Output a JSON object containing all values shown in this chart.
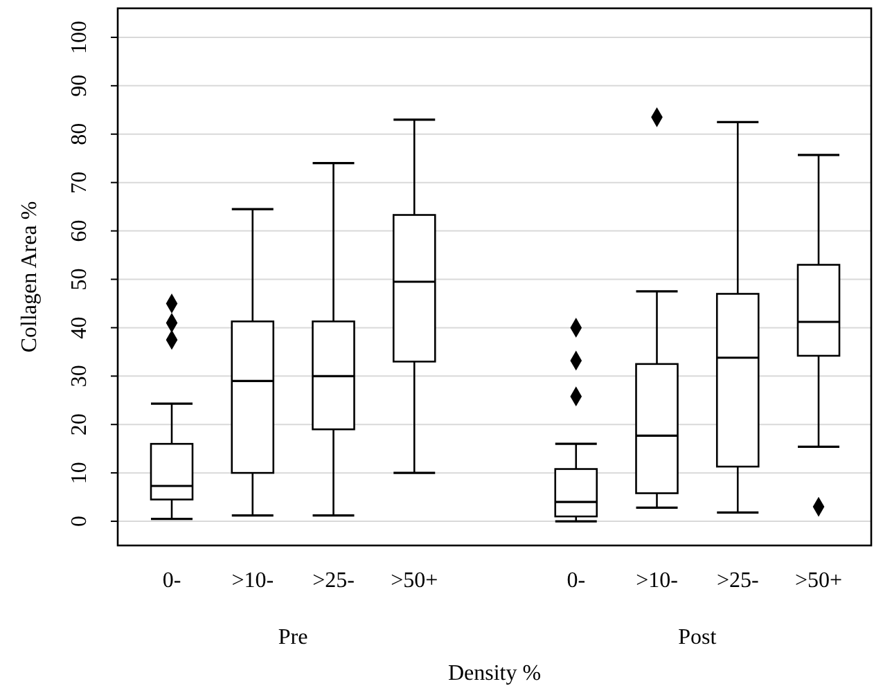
{
  "chart_data": {
    "type": "box",
    "ylabel": "Collagen Area %",
    "xlabel": "Density %",
    "categories": [
      "0-",
      ">10-",
      ">25-",
      ">50+",
      null,
      "0-",
      ">10-",
      ">25-",
      ">50+"
    ],
    "boxes": [
      {
        "low": 0.5,
        "q1": 4.5,
        "median": 7.3,
        "q3": 16,
        "high": 24.3,
        "outliers": [
          37.5,
          41,
          45
        ]
      },
      {
        "low": 1.2,
        "q1": 10,
        "median": 29,
        "q3": 41.3,
        "high": 64.5
      },
      {
        "low": 1.2,
        "q1": 19,
        "median": 30,
        "q3": 41.3,
        "high": 74
      },
      {
        "low": 10,
        "q1": 33,
        "median": 49.5,
        "q3": 63.3,
        "high": 83
      },
      null,
      {
        "low": 0,
        "q1": 1,
        "median": 4,
        "q3": 10.8,
        "high": 16,
        "outliers": [
          25.8,
          33.2,
          40
        ]
      },
      {
        "low": 2.8,
        "q1": 5.8,
        "median": 17.7,
        "q3": 32.5,
        "high": 47.5,
        "outliers": [
          83.5
        ]
      },
      {
        "low": 1.8,
        "q1": 11.3,
        "median": 33.8,
        "q3": 47,
        "high": 82.5
      },
      {
        "low": 15.4,
        "q1": 34.2,
        "median": 41.2,
        "q3": 53,
        "high": 75.7,
        "outliers": [
          3
        ]
      }
    ],
    "annotations": [
      "Pre",
      "Post"
    ],
    "ylim": [
      -5,
      106
    ],
    "yticks": [
      0,
      10,
      20,
      30,
      40,
      50,
      60,
      70,
      80,
      90,
      100
    ],
    "grid": "y",
    "marker": "diamond",
    "color": "#000000"
  }
}
